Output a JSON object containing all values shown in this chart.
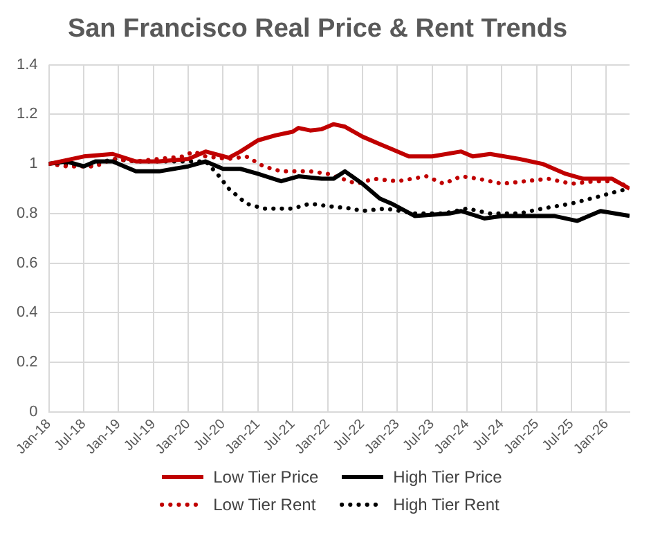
{
  "chart_data": {
    "type": "line",
    "title": "San Francisco Real Price & Rent Trends",
    "xlim": [
      "2018-01",
      "2026-05"
    ],
    "xticks": [
      {
        "value": "2018-01",
        "label": "Jan-18"
      },
      {
        "value": "2018-07",
        "label": "Jul-18"
      },
      {
        "value": "2019-01",
        "label": "Jan-19"
      },
      {
        "value": "2019-07",
        "label": "Jul-19"
      },
      {
        "value": "2020-01",
        "label": "Jan-20"
      },
      {
        "value": "2020-07",
        "label": "Jul-20"
      },
      {
        "value": "2021-01",
        "label": "Jan-21"
      },
      {
        "value": "2021-07",
        "label": "Jul-21"
      },
      {
        "value": "2022-01",
        "label": "Jan-22"
      },
      {
        "value": "2022-07",
        "label": "Jul-22"
      },
      {
        "value": "2023-01",
        "label": "Jan-23"
      },
      {
        "value": "2023-07",
        "label": "Jul-23"
      },
      {
        "value": "2024-01",
        "label": "Jan-24"
      },
      {
        "value": "2024-07",
        "label": "Jul-24"
      },
      {
        "value": "2025-01",
        "label": "Jan-25"
      },
      {
        "value": "2025-07",
        "label": "Jul-25"
      },
      {
        "value": "2026-01",
        "label": "Jan-26"
      }
    ],
    "ylim": [
      0,
      1.4
    ],
    "yticks": [
      0,
      0.2,
      0.4,
      0.6,
      0.8,
      1,
      1.2,
      1.4
    ],
    "grid": true,
    "legend": "bottom",
    "marker": "none",
    "series": [
      {
        "name": "Low Tier Price",
        "color": "#c00000",
        "line_style": "solid",
        "x": [
          "2018-01",
          "2018-07",
          "2018-12",
          "2019-04",
          "2019-08",
          "2020-01",
          "2020-04",
          "2020-08",
          "2020-10",
          "2021-01",
          "2021-04",
          "2021-07",
          "2021-08",
          "2021-10",
          "2021-12",
          "2022-02",
          "2022-04",
          "2022-07",
          "2022-10",
          "2022-12",
          "2023-03",
          "2023-07",
          "2023-12",
          "2024-02",
          "2024-05",
          "2024-10",
          "2025-02",
          "2025-06",
          "2025-09",
          "2026-02",
          "2026-05"
        ],
        "values": [
          1.0,
          1.03,
          1.04,
          1.01,
          1.01,
          1.02,
          1.05,
          1.025,
          1.05,
          1.095,
          1.115,
          1.13,
          1.145,
          1.135,
          1.14,
          1.16,
          1.15,
          1.11,
          1.08,
          1.06,
          1.03,
          1.03,
          1.05,
          1.03,
          1.04,
          1.02,
          1.0,
          0.96,
          0.94,
          0.94,
          0.9
        ]
      },
      {
        "name": "High Tier Price",
        "color": "#000000",
        "line_style": "solid",
        "x": [
          "2018-01",
          "2018-04",
          "2018-07",
          "2018-09",
          "2018-12",
          "2019-02",
          "2019-04",
          "2019-08",
          "2020-01",
          "2020-04",
          "2020-07",
          "2020-10",
          "2021-01",
          "2021-05",
          "2021-08",
          "2021-12",
          "2022-02",
          "2022-04",
          "2022-07",
          "2022-10",
          "2022-12",
          "2023-04",
          "2023-10",
          "2023-12",
          "2024-04",
          "2024-07",
          "2024-12",
          "2025-04",
          "2025-08",
          "2025-12",
          "2026-05"
        ],
        "values": [
          1.0,
          1.01,
          0.99,
          1.01,
          1.01,
          0.99,
          0.97,
          0.97,
          0.99,
          1.01,
          0.98,
          0.98,
          0.96,
          0.93,
          0.95,
          0.94,
          0.94,
          0.97,
          0.92,
          0.86,
          0.84,
          0.79,
          0.8,
          0.81,
          0.78,
          0.79,
          0.79,
          0.79,
          0.77,
          0.81,
          0.79
        ]
      },
      {
        "name": "Low Tier Rent",
        "color": "#c00000",
        "line_style": "dotted",
        "x": [
          "2018-01",
          "2018-04",
          "2018-09",
          "2018-12",
          "2019-04",
          "2019-08",
          "2019-12",
          "2020-02",
          "2020-04",
          "2020-08",
          "2020-11",
          "2021-02",
          "2021-05",
          "2021-10",
          "2022-01",
          "2022-06",
          "2022-09",
          "2023-01",
          "2023-06",
          "2023-09",
          "2023-12",
          "2024-03",
          "2024-07",
          "2024-11",
          "2025-03",
          "2025-07",
          "2025-11",
          "2026-03",
          "2026-05"
        ],
        "values": [
          1.0,
          0.99,
          0.99,
          1.02,
          1.01,
          1.02,
          1.03,
          1.05,
          1.03,
          1.02,
          1.03,
          0.99,
          0.97,
          0.97,
          0.96,
          0.92,
          0.94,
          0.93,
          0.95,
          0.92,
          0.95,
          0.94,
          0.92,
          0.93,
          0.94,
          0.92,
          0.93,
          0.93,
          0.9
        ]
      },
      {
        "name": "High Tier Rent",
        "color": "#000000",
        "line_style": "dotted",
        "x": [
          "2018-01",
          "2018-08",
          "2018-12",
          "2019-04",
          "2019-08",
          "2020-01",
          "2020-04",
          "2020-06",
          "2020-08",
          "2020-11",
          "2021-02",
          "2021-07",
          "2021-10",
          "2022-01",
          "2022-05",
          "2022-07",
          "2022-11",
          "2023-04",
          "2023-09",
          "2024-01",
          "2024-05",
          "2024-10",
          "2025-02",
          "2025-07",
          "2025-12",
          "2026-03",
          "2026-05"
        ],
        "values": [
          1.0,
          0.99,
          1.02,
          1.01,
          1.01,
          1.01,
          1.01,
          0.96,
          0.9,
          0.84,
          0.82,
          0.82,
          0.84,
          0.83,
          0.82,
          0.81,
          0.82,
          0.8,
          0.8,
          0.82,
          0.8,
          0.8,
          0.82,
          0.84,
          0.87,
          0.89,
          0.9
        ]
      }
    ]
  }
}
